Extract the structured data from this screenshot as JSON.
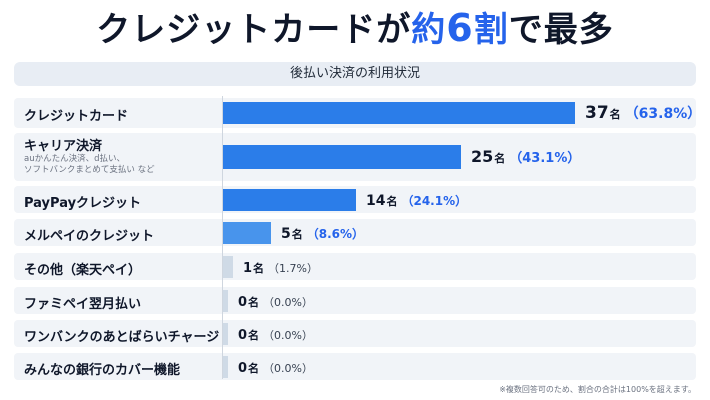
{
  "headline": {
    "part1": "クレジットカード",
    "part2": "が",
    "part3": "約",
    "part4": "6",
    "part5": "割",
    "part6": "で最多"
  },
  "subtitle": "後払い決済の利用状況",
  "footnote": "※複数回答可のため、割合の合計は100%を超えます。",
  "colors": {
    "accent": "#2563eb",
    "bar": "#2b7de9",
    "bar_light": "#4894ec",
    "bar_muted": "#cfdae6",
    "row_bg": "#f1f4f8"
  },
  "chart_data": {
    "type": "bar",
    "orientation": "horizontal",
    "title": "後払い決済の利用状況",
    "categories": [
      "クレジットカード",
      "キャリア決済",
      "PayPayクレジット",
      "メルペイのクレジット",
      "その他（楽天ペイ）",
      "ファミペイ翌月払い",
      "ワンバンクのあとばらいチャージ",
      "みんなの銀行のカバー機能"
    ],
    "sublabels": [
      "",
      "auかんたん決済、d払い、\nソフトバンクまとめて支払い など",
      "",
      "",
      "",
      "",
      "",
      ""
    ],
    "values": [
      37,
      25,
      14,
      5,
      1,
      0,
      0,
      0
    ],
    "unit": "名",
    "percent_labels": [
      "（63.8%）",
      "（43.1%）",
      "（24.1%）",
      "（8.6%）",
      "（1.7%）",
      "（0.0%）",
      "（0.0%）",
      "（0.0%）"
    ],
    "percents": [
      63.8,
      43.1,
      24.1,
      8.6,
      1.7,
      0.0,
      0.0,
      0.0
    ]
  }
}
